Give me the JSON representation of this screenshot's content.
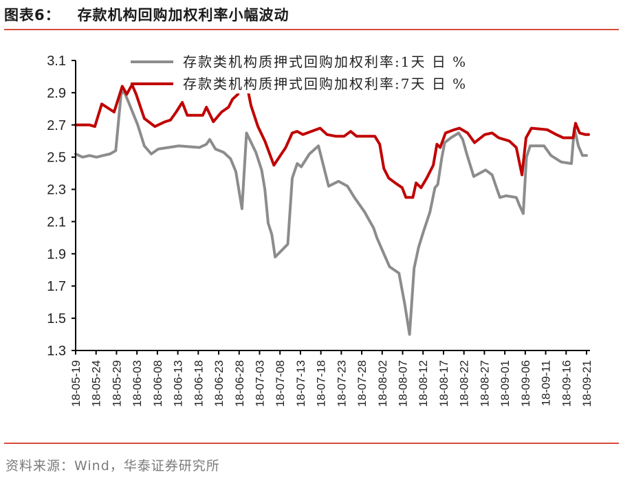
{
  "header": {
    "figure_label": "图表6：",
    "title": "存款机构回购加权利率小幅波动"
  },
  "footer": {
    "source": "资料来源：Wind，华泰证券研究所"
  },
  "colors": {
    "rule": "#d64b3c",
    "series_1d": "#8c8c8c",
    "series_7d": "#c00000",
    "axis": "#000000"
  },
  "chart_data": {
    "type": "line",
    "title": "存款机构回购加权利率小幅波动",
    "xlabel": "",
    "ylabel": "%",
    "ylim": [
      1.3,
      3.1
    ],
    "yticks": [
      "3.1",
      "2.9",
      "2.7",
      "2.5",
      "2.3",
      "2.1",
      "1.9",
      "1.7",
      "1.5",
      "1.3"
    ],
    "grid": false,
    "legend_position": "top-center",
    "categories": [
      "18-05-19",
      "18-05-24",
      "18-05-29",
      "18-06-03",
      "18-06-08",
      "18-06-13",
      "18-06-18",
      "18-06-23",
      "18-06-28",
      "18-07-03",
      "18-07-08",
      "18-07-13",
      "18-07-18",
      "18-07-23",
      "18-07-28",
      "18-08-02",
      "18-08-07",
      "18-08-12",
      "18-08-17",
      "18-08-22",
      "18-08-27",
      "18-09-01",
      "18-09-06",
      "18-09-11",
      "18-09-16",
      "18-09-21"
    ],
    "series": [
      {
        "name": "存款类机构质押式回购加权利率:1天 日 %",
        "color": "#8c8c8c",
        "values_at_ticks": [
          2.52,
          2.51,
          2.82,
          2.55,
          2.57,
          2.57,
          2.58,
          2.52,
          2.2,
          2.1,
          1.9,
          2.45,
          2.55,
          2.33,
          2.25,
          2.05,
          1.4,
          2.1,
          2.62,
          2.4,
          2.38,
          2.25,
          2.15,
          2.57,
          2.46,
          2.51
        ],
        "points": [
          [
            0,
            2.52
          ],
          [
            1.7,
            2.5
          ],
          [
            3.4,
            2.51
          ],
          [
            5.1,
            2.5
          ],
          [
            6.7,
            2.51
          ],
          [
            8.4,
            2.52
          ],
          [
            9.8,
            2.54
          ],
          [
            11.1,
            2.89
          ],
          [
            11.8,
            2.91
          ],
          [
            12.8,
            2.85
          ],
          [
            15.2,
            2.7
          ],
          [
            16.8,
            2.57
          ],
          [
            18.5,
            2.52
          ],
          [
            20.2,
            2.55
          ],
          [
            25.2,
            2.57
          ],
          [
            30.3,
            2.56
          ],
          [
            32.0,
            2.58
          ],
          [
            32.8,
            2.61
          ],
          [
            34.2,
            2.55
          ],
          [
            36.2,
            2.53
          ],
          [
            37.9,
            2.49
          ],
          [
            39.2,
            2.41
          ],
          [
            40.7,
            2.18
          ],
          [
            41.8,
            2.65
          ],
          [
            44.1,
            2.53
          ],
          [
            45.5,
            2.42
          ],
          [
            46.3,
            2.3
          ],
          [
            47.1,
            2.09
          ],
          [
            48.0,
            2.02
          ],
          [
            48.8,
            1.88
          ],
          [
            51.9,
            1.96
          ],
          [
            53.0,
            2.37
          ],
          [
            54.2,
            2.46
          ],
          [
            55.2,
            2.44
          ],
          [
            57.2,
            2.52
          ],
          [
            59.4,
            2.57
          ],
          [
            61.9,
            2.32
          ],
          [
            64.3,
            2.35
          ],
          [
            66.5,
            2.32
          ],
          [
            68.2,
            2.25
          ],
          [
            70.7,
            2.16
          ],
          [
            72.9,
            2.06
          ],
          [
            73.7,
            2.0
          ],
          [
            74.9,
            1.93
          ],
          [
            76.8,
            1.82
          ],
          [
            79.1,
            1.78
          ],
          [
            80.5,
            1.59
          ],
          [
            81.7,
            1.4
          ],
          [
            82.8,
            1.81
          ],
          [
            83.9,
            1.94
          ],
          [
            85.0,
            2.03
          ],
          [
            86.7,
            2.16
          ],
          [
            87.9,
            2.31
          ],
          [
            88.6,
            2.33
          ],
          [
            89.6,
            2.5
          ],
          [
            90.3,
            2.59
          ],
          [
            91.8,
            2.62
          ],
          [
            93.7,
            2.65
          ],
          [
            94.7,
            2.61
          ],
          [
            95.7,
            2.52
          ],
          [
            97.4,
            2.38
          ],
          [
            100.3,
            2.42
          ],
          [
            101.9,
            2.39
          ],
          [
            102.7,
            2.33
          ],
          [
            103.8,
            2.25
          ],
          [
            105.3,
            2.26
          ],
          [
            107.8,
            2.25
          ],
          [
            108.6,
            2.2
          ],
          [
            109.5,
            2.15
          ],
          [
            110.3,
            2.5
          ],
          [
            111.2,
            2.57
          ],
          [
            114.6,
            2.57
          ],
          [
            116.3,
            2.51
          ],
          [
            118.8,
            2.47
          ],
          [
            121.3,
            2.46
          ],
          [
            122.0,
            2.68
          ],
          [
            123.0,
            2.57
          ],
          [
            124.0,
            2.51
          ],
          [
            125.0,
            2.51
          ]
        ]
      },
      {
        "name": "存款类机构质押式回购加权利率:7天 日 %",
        "color": "#c00000",
        "values_at_ticks": [
          2.69,
          2.8,
          2.95,
          2.75,
          2.72,
          2.84,
          2.76,
          2.76,
          2.98,
          2.6,
          2.5,
          2.65,
          2.67,
          2.63,
          2.62,
          2.62,
          2.24,
          2.44,
          2.65,
          2.62,
          2.63,
          2.6,
          2.4,
          2.67,
          2.62,
          2.64
        ],
        "points": [
          [
            0,
            2.7
          ],
          [
            2.5,
            2.7
          ],
          [
            3.4,
            2.7
          ],
          [
            4.7,
            2.69
          ],
          [
            6.4,
            2.83
          ],
          [
            9.4,
            2.78
          ],
          [
            11.4,
            2.94
          ],
          [
            12.5,
            2.89
          ],
          [
            13.8,
            2.95
          ],
          [
            14.8,
            2.89
          ],
          [
            16.8,
            2.74
          ],
          [
            19.4,
            2.69
          ],
          [
            21.9,
            2.72
          ],
          [
            23.2,
            2.73
          ],
          [
            24.6,
            2.78
          ],
          [
            26.1,
            2.84
          ],
          [
            27.3,
            2.76
          ],
          [
            31.1,
            2.76
          ],
          [
            32.0,
            2.81
          ],
          [
            33.7,
            2.72
          ],
          [
            35.7,
            2.78
          ],
          [
            37.4,
            2.81
          ],
          [
            38.4,
            2.86
          ],
          [
            39.7,
            2.89
          ],
          [
            41.4,
            3.01
          ],
          [
            42.9,
            2.82
          ],
          [
            44.6,
            2.69
          ],
          [
            46.3,
            2.6
          ],
          [
            48.5,
            2.45
          ],
          [
            51.4,
            2.56
          ],
          [
            53.0,
            2.65
          ],
          [
            54.2,
            2.66
          ],
          [
            55.6,
            2.64
          ],
          [
            59.8,
            2.68
          ],
          [
            61.5,
            2.64
          ],
          [
            63.6,
            2.63
          ],
          [
            65.7,
            2.63
          ],
          [
            67.3,
            2.66
          ],
          [
            68.7,
            2.63
          ],
          [
            73.2,
            2.63
          ],
          [
            74.4,
            2.58
          ],
          [
            75.4,
            2.43
          ],
          [
            76.6,
            2.37
          ],
          [
            78.2,
            2.34
          ],
          [
            79.9,
            2.31
          ],
          [
            80.8,
            2.25
          ],
          [
            82.5,
            2.25
          ],
          [
            83.3,
            2.34
          ],
          [
            84.5,
            2.31
          ],
          [
            85.9,
            2.37
          ],
          [
            87.5,
            2.45
          ],
          [
            88.4,
            2.58
          ],
          [
            89.2,
            2.56
          ],
          [
            90.5,
            2.65
          ],
          [
            92.6,
            2.67
          ],
          [
            93.9,
            2.68
          ],
          [
            95.9,
            2.65
          ],
          [
            97.6,
            2.59
          ],
          [
            100.1,
            2.64
          ],
          [
            101.9,
            2.65
          ],
          [
            103.5,
            2.62
          ],
          [
            106.1,
            2.6
          ],
          [
            107.8,
            2.56
          ],
          [
            109.2,
            2.39
          ],
          [
            110.2,
            2.62
          ],
          [
            111.5,
            2.68
          ],
          [
            115.4,
            2.67
          ],
          [
            117.6,
            2.64
          ],
          [
            119.3,
            2.62
          ],
          [
            121.7,
            2.62
          ],
          [
            122.3,
            2.71
          ],
          [
            123.3,
            2.65
          ],
          [
            124.7,
            2.64
          ],
          [
            125.5,
            2.64
          ]
        ]
      }
    ]
  },
  "legend": {
    "items": [
      {
        "label": "存款类机构质押式回购加权利率:1天  日  %",
        "color": "#8c8c8c"
      },
      {
        "label": "存款类机构质押式回购加权利率:7天  日  %",
        "color": "#c00000"
      }
    ]
  }
}
